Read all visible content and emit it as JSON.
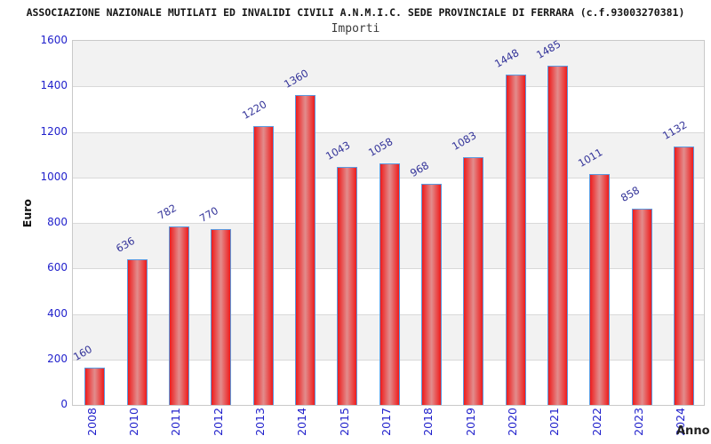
{
  "header": {
    "title": "ASSOCIAZIONE NAZIONALE MUTILATI ED INVALIDI CIVILI A.N.M.I.C. SEDE PROVINCIALE DI FERRARA (c.f.93003270381)",
    "subtitle": "Importi"
  },
  "chart_data": {
    "type": "bar",
    "title": "Importi",
    "xlabel": "Anno",
    "ylabel": "Euro",
    "categories": [
      "2008",
      "2010",
      "2011",
      "2012",
      "2013",
      "2014",
      "2015",
      "2017",
      "2018",
      "2019",
      "2020",
      "2021",
      "2022",
      "2023",
      "2024"
    ],
    "values": [
      160,
      636,
      782,
      770,
      1220,
      1360,
      1043,
      1058,
      968,
      1083,
      1448,
      1485,
      1011,
      858,
      1132
    ],
    "ylim": [
      0,
      1600
    ],
    "ytick_step": 200,
    "yticks": [
      0,
      200,
      400,
      600,
      800,
      1000,
      1200,
      1400,
      1600
    ],
    "legend": "none",
    "grid": "horizontal gridlines every 200 with alternating gray/white bands",
    "colors": {
      "bar_fill_edge": "#ee1c1c",
      "bar_fill_center": "#e28d8d",
      "bar_border": "#5b9ae0",
      "axis_tick_label": "#2222cc",
      "value_label": "#333399",
      "band_gray": "#f2f2f2",
      "band_white": "#ffffff",
      "gridline": "#d9d9d9",
      "plot_border": "#c9c9c9"
    }
  }
}
